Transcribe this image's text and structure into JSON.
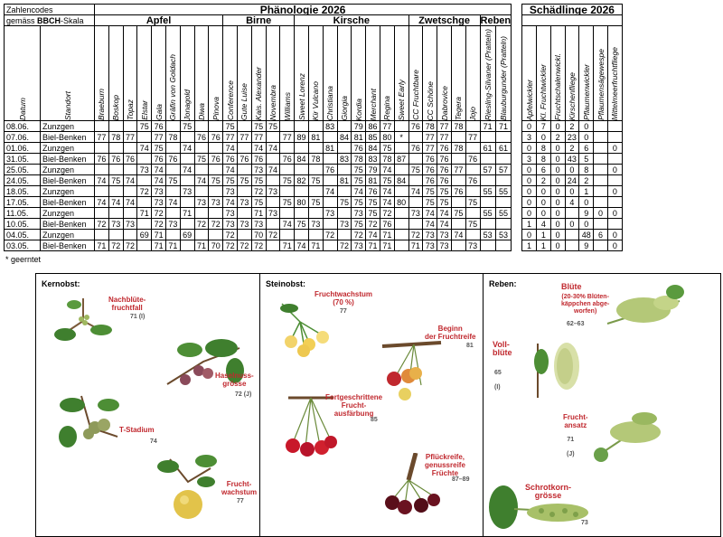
{
  "header": {
    "codes_label": "Zahlencodes",
    "scale_prefix": "gemäss ",
    "scale_bold": "BBCH",
    "scale_suffix": "-Skala",
    "pheno_title": "Phänologie 2026",
    "pest_title": "Schädlinge 2026",
    "col_date": "Datum",
    "col_site": "Standort"
  },
  "groups": [
    {
      "name": "Apfel",
      "cols": [
        "Braeburn",
        "Boskop",
        "Topaz",
        "Elstar",
        "Gala",
        "Gräfin von Goldach",
        "Jonagold",
        "Diwa",
        "Pinova"
      ]
    },
    {
      "name": "Birne",
      "cols": [
        "Conference",
        "Gute Luise",
        "Kais. Alexander",
        "Novembra",
        "Williams"
      ]
    },
    {
      "name": "Kirsche",
      "cols": [
        "Sweet Lorenz",
        "Kir Vulcano",
        "Christiana",
        "Giorgia",
        "Kordia",
        "Merchant",
        "Regina",
        "Sweet Early"
      ]
    },
    {
      "name": "Zwetschge",
      "cols": [
        "CC Fruchtbare",
        "CC Schöne",
        "Dabrovice",
        "Tegera",
        "Jojo"
      ]
    },
    {
      "name": "Reben",
      "cols": [
        "Riesling-Silvaner (Pratteln)",
        "Blauburgunder (Pratteln)"
      ]
    }
  ],
  "pests": [
    "Apfelwickler",
    "Kl. Fruchtwickler",
    "Fruchtschalenwickl.",
    "Kirschenfliege",
    "Pflaumenwickler",
    "Pflaumensägewespe",
    "Mittelmeerfruchtfliege"
  ],
  "rows": [
    {
      "date": "08.06.",
      "site": "Zunzgen",
      "v": [
        "",
        "",
        "",
        "75",
        "76",
        "",
        "75",
        "",
        "",
        "75",
        "",
        "75",
        "75",
        "",
        "",
        "",
        "83",
        "",
        "79",
        "86",
        "77",
        "",
        "76",
        "78",
        "77",
        "78",
        "",
        "71",
        "71"
      ],
      "p": [
        "0",
        "7",
        "0",
        "2",
        "0",
        "",
        ""
      ]
    },
    {
      "date": "07.06.",
      "site": "Biel-Benken",
      "v": [
        "77",
        "78",
        "77",
        "",
        "77",
        "78",
        "",
        "76",
        "76",
        "77",
        "77",
        "77",
        "",
        "77",
        "89",
        "81",
        "",
        "84",
        "81",
        "85",
        "80",
        "*",
        "",
        "77",
        "77",
        "",
        "77",
        "",
        ""
      ],
      "p": [
        "3",
        "0",
        "2",
        "23",
        "0",
        "",
        ""
      ]
    },
    {
      "date": "01.06.",
      "site": "Zunzgen",
      "v": [
        "",
        "",
        "",
        "74",
        "75",
        "",
        "74",
        "",
        "",
        "74",
        "",
        "74",
        "74",
        "",
        "",
        "",
        "81",
        "",
        "76",
        "84",
        "75",
        "",
        "76",
        "77",
        "76",
        "78",
        "",
        "61",
        "61"
      ],
      "p": [
        "0",
        "8",
        "0",
        "2",
        "6",
        "",
        "0"
      ]
    },
    {
      "date": "31.05.",
      "site": "Biel-Benken",
      "v": [
        "76",
        "76",
        "76",
        "",
        "76",
        "76",
        "",
        "75",
        "76",
        "76",
        "76",
        "76",
        "",
        "76",
        "84",
        "78",
        "",
        "83",
        "78",
        "83",
        "78",
        "87",
        "",
        "76",
        "76",
        "",
        "76",
        "",
        ""
      ],
      "p": [
        "3",
        "8",
        "0",
        "43",
        "5",
        "",
        ""
      ]
    },
    {
      "date": "25.05.",
      "site": "Zunzgen",
      "v": [
        "",
        "",
        "",
        "73",
        "74",
        "",
        "74",
        "",
        "",
        "74",
        "",
        "73",
        "74",
        "",
        "",
        "",
        "76",
        "",
        "75",
        "79",
        "74",
        "",
        "75",
        "76",
        "76",
        "77",
        "",
        "57",
        "57"
      ],
      "p": [
        "0",
        "6",
        "0",
        "0",
        "8",
        "",
        "0"
      ]
    },
    {
      "date": "24.05.",
      "site": "Biel-Benken",
      "v": [
        "74",
        "75",
        "74",
        "",
        "74",
        "75",
        "",
        "74",
        "75",
        "75",
        "75",
        "75",
        "",
        "75",
        "82",
        "75",
        "",
        "81",
        "75",
        "81",
        "75",
        "84",
        "",
        "76",
        "76",
        "",
        "76",
        "",
        ""
      ],
      "p": [
        "0",
        "2",
        "0",
        "24",
        "2",
        "",
        ""
      ]
    },
    {
      "date": "18.05.",
      "site": "Zunzgen",
      "v": [
        "",
        "",
        "",
        "72",
        "73",
        "",
        "73",
        "",
        "",
        "73",
        "",
        "72",
        "73",
        "",
        "",
        "",
        "74",
        "",
        "74",
        "76",
        "74",
        "",
        "74",
        "75",
        "75",
        "76",
        "",
        "55",
        "55"
      ],
      "p": [
        "0",
        "0",
        "0",
        "0",
        "1",
        "",
        "0"
      ]
    },
    {
      "date": "17.05.",
      "site": "Biel-Benken",
      "v": [
        "74",
        "74",
        "74",
        "",
        "73",
        "74",
        "",
        "73",
        "73",
        "74",
        "73",
        "75",
        "",
        "75",
        "80",
        "75",
        "",
        "75",
        "75",
        "75",
        "74",
        "80",
        "",
        "75",
        "75",
        "",
        "75",
        "",
        ""
      ],
      "p": [
        "0",
        "0",
        "0",
        "4",
        "0",
        "",
        ""
      ]
    },
    {
      "date": "11.05.",
      "site": "Zunzgen",
      "v": [
        "",
        "",
        "",
        "71",
        "72",
        "",
        "71",
        "",
        "",
        "73",
        "",
        "71",
        "73",
        "",
        "",
        "",
        "73",
        "",
        "73",
        "75",
        "72",
        "",
        "73",
        "74",
        "74",
        "75",
        "",
        "55",
        "55"
      ],
      "p": [
        "0",
        "0",
        "0",
        "",
        "9",
        "0",
        "0"
      ]
    },
    {
      "date": "10.05.",
      "site": "Biel-Benken",
      "v": [
        "72",
        "73",
        "73",
        "",
        "72",
        "73",
        "",
        "72",
        "72",
        "73",
        "73",
        "73",
        "",
        "74",
        "75",
        "73",
        "",
        "73",
        "75",
        "72",
        "76",
        "",
        "",
        "74",
        "74",
        "",
        "75",
        "",
        ""
      ],
      "p": [
        "1",
        "4",
        "0",
        "0",
        "0",
        "",
        ""
      ]
    },
    {
      "date": "04.05.",
      "site": "Zunzgen",
      "v": [
        "",
        "",
        "",
        "69",
        "71",
        "",
        "69",
        "",
        "",
        "72",
        "",
        "70",
        "72",
        "",
        "",
        "",
        "72",
        "",
        "72",
        "74",
        "71",
        "",
        "72",
        "73",
        "73",
        "74",
        "",
        "53",
        "53"
      ],
      "p": [
        "0",
        "1",
        "0",
        "",
        "48",
        "6",
        "0"
      ]
    },
    {
      "date": "03.05.",
      "site": "Biel-Benken",
      "v": [
        "71",
        "72",
        "72",
        "",
        "71",
        "71",
        "",
        "71",
        "70",
        "72",
        "72",
        "72",
        "",
        "71",
        "74",
        "71",
        "",
        "72",
        "73",
        "71",
        "71",
        "",
        "71",
        "73",
        "73",
        "",
        "73",
        "",
        ""
      ],
      "p": [
        "1",
        "1",
        "0",
        "",
        "9",
        "",
        "0"
      ]
    }
  ],
  "footnote": "* geerntet",
  "panels": {
    "kern": {
      "title": "Kernobst:",
      "stages": [
        {
          "label": "Nachblüte-\nfruchtfall",
          "code": "71 (I)"
        },
        {
          "label": "Haselnuss-\ngrösse",
          "code": "72 (J)"
        },
        {
          "label": "T-Stadium",
          "code": "74"
        },
        {
          "label": "Frucht-\nwachstum",
          "code": "77"
        }
      ]
    },
    "stein": {
      "title": "Steinobst:",
      "stages": [
        {
          "label": "Fruchtwachstum\n(70 %)",
          "code": "77"
        },
        {
          "label": "Beginn\nder Fruchtreife",
          "code": "81"
        },
        {
          "label": "Fortgeschrittene\nFrucht-\nausfärbung",
          "code": "85"
        },
        {
          "label": "Pflückreife,\ngenussreife\nFrüchte",
          "code": "87–89"
        }
      ]
    },
    "reben": {
      "title": "Reben:",
      "stages": [
        {
          "label": "Blüte",
          "sub": "(20-30% Blüten-\nkäppchen abge-\nworfen)",
          "code": "62–63"
        },
        {
          "label": "Voll-\nblüte",
          "code": "65\n\n(I)"
        },
        {
          "label": "Frucht-\nansatz",
          "code": "71\n\n(J)"
        },
        {
          "label": "Schrotkorn-\ngrösse",
          "code": "73"
        }
      ]
    }
  },
  "colors": {
    "caption": "#c0282e",
    "code": "#555555",
    "apple_red": "#b8433c",
    "cherry": "#c0182a",
    "leaf": "#3f7f2e"
  }
}
